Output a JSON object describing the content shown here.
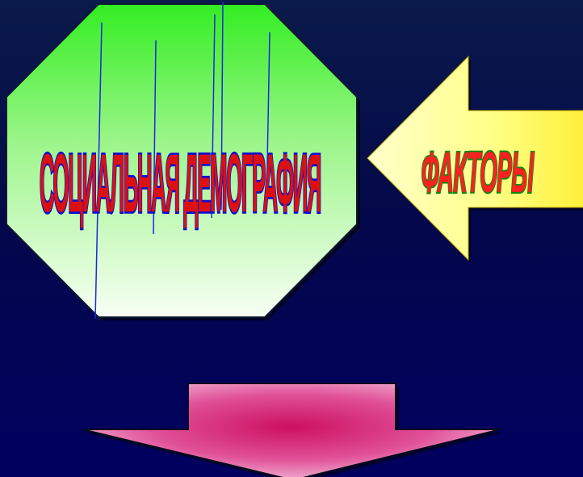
{
  "slide": {
    "octagon": {
      "text": "СОЦИАЛЬНАЯ ДЕМОГРАФИЯ",
      "fill_top": "#33ee22",
      "fill_bottom": "#f8fff4",
      "text_color": "#dd1010",
      "text_outline": "#1010cc"
    },
    "left_arrow": {
      "text": "ФАКТОРЫ",
      "fill_light": "#ffffcc",
      "fill_dark": "#ffee33",
      "text_color": "#ff2020",
      "text_outline": "#118811"
    },
    "down_arrow": {
      "fill_center": "#cc1060",
      "fill_edge": "#f4c0dc"
    },
    "colors": {
      "background_top": "#0a1a4a",
      "background_bottom": "#000060"
    }
  }
}
